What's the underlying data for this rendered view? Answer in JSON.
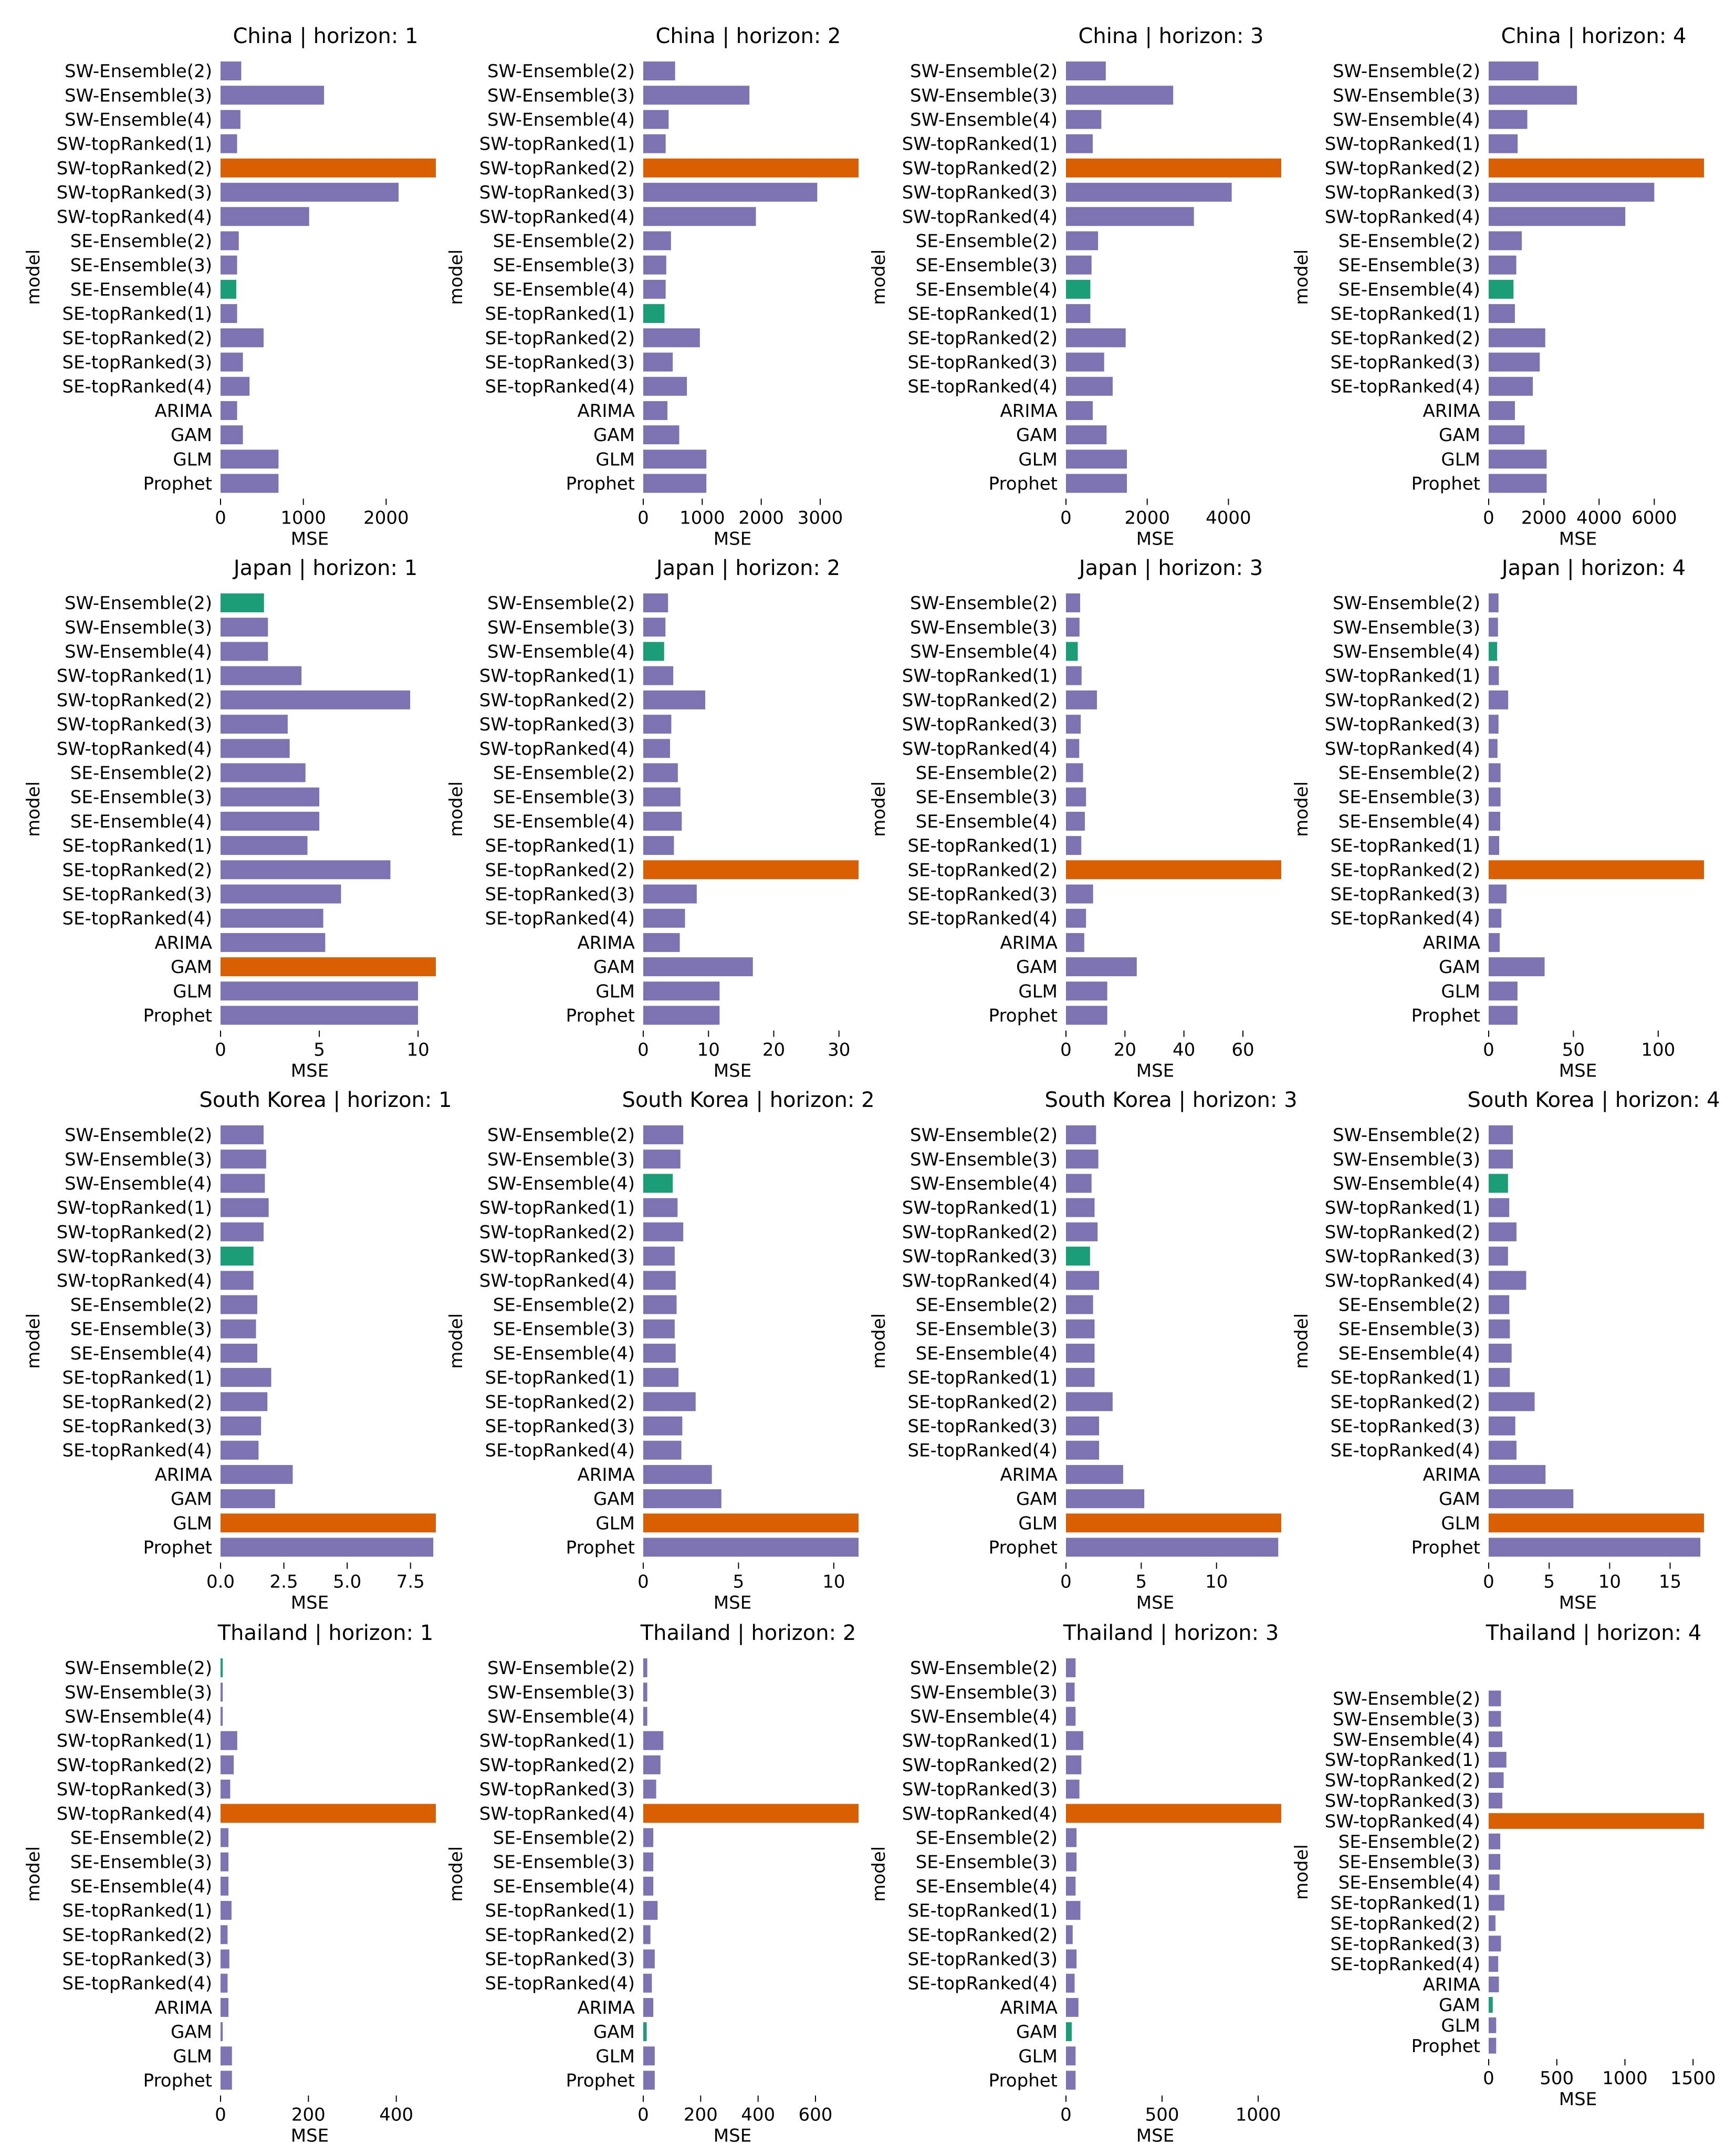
{
  "models": [
    "SW-Ensemble(2)",
    "SW-Ensemble(3)",
    "SW-Ensemble(4)",
    "SW-topRanked(1)",
    "SW-topRanked(2)",
    "SW-topRanked(3)",
    "SW-topRanked(4)",
    "SE-Ensemble(2)",
    "SE-Ensemble(3)",
    "SE-Ensemble(4)",
    "SE-topRanked(1)",
    "SE-topRanked(2)",
    "SE-topRanked(3)",
    "SE-topRanked(4)",
    "ARIMA",
    "GAM",
    "GLM",
    "Prophet"
  ],
  "colors": {
    "default": "#7e73b2",
    "best": "#1b9e77",
    "worst": "#d95f02"
  },
  "chart_data": [
    {
      "type": "bar",
      "orientation": "horizontal",
      "title": "China | horizon: 1",
      "xlabel": "MSE",
      "ylabel": "model",
      "xlim": [
        0,
        2600
      ],
      "xticks": [
        0,
        1000,
        2000
      ],
      "tick_labels": [
        "0",
        "1000",
        "2000"
      ],
      "values": [
        250,
        1250,
        240,
        200,
        2600,
        2150,
        1070,
        220,
        200,
        190,
        200,
        520,
        270,
        350,
        200,
        270,
        700,
        700
      ]
    },
    {
      "type": "bar",
      "orientation": "horizontal",
      "title": "China | horizon: 2",
      "xlabel": "MSE",
      "ylabel": "model",
      "xlim": [
        0,
        3650
      ],
      "xticks": [
        0,
        1000,
        2000,
        3000
      ],
      "tick_labels": [
        "0",
        "1000",
        "2000",
        "3000"
      ],
      "values": [
        540,
        1800,
        430,
        380,
        3650,
        2950,
        1910,
        470,
        390,
        380,
        360,
        960,
        500,
        740,
        410,
        610,
        1070,
        1070
      ]
    },
    {
      "type": "bar",
      "orientation": "horizontal",
      "title": "China | horizon: 3",
      "xlabel": "MSE",
      "ylabel": "model",
      "xlim": [
        0,
        5300
      ],
      "xticks": [
        0,
        2000,
        4000
      ],
      "tick_labels": [
        "0",
        "2000",
        "4000"
      ],
      "values": [
        980,
        2640,
        870,
        660,
        5300,
        4080,
        3150,
        790,
        630,
        600,
        600,
        1470,
        940,
        1150,
        660,
        1000,
        1500,
        1500
      ]
    },
    {
      "type": "bar",
      "orientation": "horizontal",
      "title": "China | horizon: 4",
      "xlabel": "MSE",
      "ylabel": "model",
      "xlim": [
        0,
        7800
      ],
      "xticks": [
        0,
        2000,
        4000,
        6000
      ],
      "tick_labels": [
        "0",
        "2000",
        "4000",
        "6000"
      ],
      "values": [
        1800,
        3200,
        1400,
        1050,
        7800,
        6000,
        4950,
        1200,
        1000,
        900,
        950,
        2050,
        1850,
        1600,
        950,
        1300,
        2100,
        2100
      ]
    },
    {
      "type": "bar",
      "orientation": "horizontal",
      "title": "Japan | horizon: 1",
      "xlabel": "MSE",
      "ylabel": "model",
      "xlim": [
        0,
        10.9
      ],
      "xticks": [
        0,
        5,
        10
      ],
      "tick_labels": [
        "0",
        "5",
        "10"
      ],
      "values": [
        2.2,
        2.4,
        2.4,
        4.1,
        9.6,
        3.4,
        3.5,
        4.3,
        5.0,
        5.0,
        4.4,
        8.6,
        6.1,
        5.2,
        5.3,
        10.9,
        10.0,
        10.0
      ]
    },
    {
      "type": "bar",
      "orientation": "horizontal",
      "title": "Japan | horizon: 2",
      "xlabel": "MSE",
      "ylabel": "model",
      "xlim": [
        0,
        33
      ],
      "xticks": [
        0,
        10,
        20,
        30
      ],
      "tick_labels": [
        "0",
        "10",
        "20",
        "30"
      ],
      "values": [
        3.8,
        3.4,
        3.2,
        4.6,
        9.5,
        4.3,
        4.1,
        5.3,
        5.7,
        5.9,
        4.7,
        33,
        8.2,
        6.4,
        5.6,
        16.8,
        11.7,
        11.7
      ]
    },
    {
      "type": "bar",
      "orientation": "horizontal",
      "title": "Japan | horizon: 3",
      "xlabel": "MSE",
      "ylabel": "model",
      "xlim": [
        0,
        73
      ],
      "xticks": [
        0,
        20,
        40,
        60
      ],
      "tick_labels": [
        "0",
        "20",
        "40",
        "60"
      ],
      "values": [
        4.8,
        4.6,
        4.0,
        5.3,
        10.5,
        5.0,
        4.5,
        5.8,
        6.8,
        6.4,
        5.2,
        73,
        9.2,
        6.8,
        6.2,
        24.0,
        14.0,
        14.0
      ]
    },
    {
      "type": "bar",
      "orientation": "horizontal",
      "title": "Japan | horizon: 4",
      "xlabel": "MSE",
      "ylabel": "model",
      "xlim": [
        0,
        127
      ],
      "xticks": [
        0,
        50,
        100
      ],
      "tick_labels": [
        "0",
        "50",
        "100"
      ],
      "values": [
        5.8,
        5.5,
        5.0,
        6.0,
        11.5,
        5.8,
        5.2,
        7.0,
        7.0,
        6.8,
        6.2,
        127,
        10.5,
        7.5,
        6.5,
        33.0,
        17.0,
        17.0
      ]
    },
    {
      "type": "bar",
      "orientation": "horizontal",
      "title": "South Korea | horizon: 1",
      "xlabel": "MSE",
      "ylabel": "model",
      "xlim": [
        0,
        8.5
      ],
      "xticks": [
        0,
        2.5,
        5,
        7.5
      ],
      "tick_labels": [
        "0.0",
        "2.5",
        "5.0",
        "7.5"
      ],
      "values": [
        1.7,
        1.8,
        1.75,
        1.9,
        1.7,
        1.3,
        1.3,
        1.45,
        1.4,
        1.45,
        2.0,
        1.85,
        1.6,
        1.5,
        2.85,
        2.15,
        8.5,
        8.4
      ]
    },
    {
      "type": "bar",
      "orientation": "horizontal",
      "title": "South Korea | horizon: 2",
      "xlabel": "MSE",
      "ylabel": "model",
      "xlim": [
        0,
        11.3
      ],
      "xticks": [
        0,
        5,
        10
      ],
      "tick_labels": [
        "0",
        "5",
        "10"
      ],
      "values": [
        2.1,
        1.95,
        1.55,
        1.8,
        2.1,
        1.65,
        1.7,
        1.75,
        1.65,
        1.7,
        1.85,
        2.75,
        2.05,
        2.0,
        3.6,
        4.1,
        11.3,
        11.3
      ]
    },
    {
      "type": "bar",
      "orientation": "horizontal",
      "title": "South Korea | horizon: 3",
      "xlabel": "MSE",
      "ylabel": "model",
      "xlim": [
        0,
        14.3
      ],
      "xticks": [
        0,
        5,
        10
      ],
      "tick_labels": [
        "0",
        "5",
        "10"
      ],
      "values": [
        2.0,
        2.15,
        1.7,
        1.9,
        2.1,
        1.6,
        2.2,
        1.8,
        1.9,
        1.9,
        1.9,
        3.1,
        2.2,
        2.2,
        3.8,
        5.2,
        14.3,
        14.1
      ]
    },
    {
      "type": "bar",
      "orientation": "horizontal",
      "title": "South Korea | horizon: 4",
      "xlabel": "MSE",
      "ylabel": "model",
      "xlim": [
        0,
        17.8
      ],
      "xticks": [
        0,
        5,
        10,
        15
      ],
      "tick_labels": [
        "0",
        "5",
        "10",
        "15"
      ],
      "values": [
        2.0,
        2.0,
        1.6,
        1.7,
        2.3,
        1.6,
        3.1,
        1.7,
        1.75,
        1.9,
        1.75,
        3.8,
        2.2,
        2.3,
        4.7,
        7.0,
        17.8,
        17.5
      ]
    },
    {
      "type": "bar",
      "orientation": "horizontal",
      "title": "Thailand | horizon: 1",
      "xlabel": "MSE",
      "ylabel": "model",
      "xlim": [
        0,
        490
      ],
      "xticks": [
        0,
        200,
        400
      ],
      "tick_labels": [
        "0",
        "200",
        "400"
      ],
      "values": [
        5,
        5,
        5,
        38,
        30,
        22,
        490,
        18,
        18,
        18,
        25,
        16,
        20,
        16,
        18,
        5,
        26,
        26
      ]
    },
    {
      "type": "bar",
      "orientation": "horizontal",
      "title": "Thailand | horizon: 2",
      "xlabel": "MSE",
      "ylabel": "model",
      "xlim": [
        0,
        750
      ],
      "xticks": [
        0,
        200,
        400,
        600
      ],
      "tick_labels": [
        "0",
        "200",
        "400",
        "600"
      ],
      "values": [
        14,
        14,
        14,
        70,
        60,
        45,
        750,
        35,
        35,
        35,
        50,
        25,
        40,
        30,
        35,
        12,
        40,
        40
      ]
    },
    {
      "type": "bar",
      "orientation": "horizontal",
      "title": "Thailand | horizon: 3",
      "xlabel": "MSE",
      "ylabel": "model",
      "xlim": [
        0,
        1120
      ],
      "xticks": [
        0,
        500,
        1000
      ],
      "tick_labels": [
        "0",
        "500",
        "1000"
      ],
      "values": [
        50,
        45,
        50,
        90,
        80,
        70,
        1120,
        55,
        55,
        50,
        75,
        35,
        55,
        45,
        65,
        30,
        50,
        50
      ]
    },
    {
      "type": "bar",
      "orientation": "horizontal",
      "title": "Thailand | horizon: 4",
      "xlabel": "MSE",
      "ylabel": "model",
      "xlim": [
        0,
        1580
      ],
      "xticks": [
        0,
        500,
        1000,
        1500
      ],
      "tick_labels": [
        "0",
        "500",
        "1000",
        "1500"
      ],
      "values": [
        90,
        90,
        100,
        130,
        110,
        100,
        1580,
        85,
        85,
        80,
        115,
        50,
        90,
        70,
        75,
        30,
        55,
        55
      ]
    }
  ]
}
